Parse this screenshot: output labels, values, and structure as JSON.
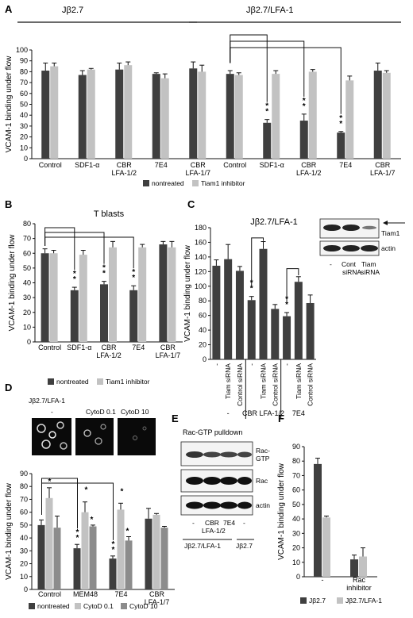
{
  "colors": {
    "dark": "#3f3f3f",
    "light": "#c2c2c2",
    "mid": "#8c8c8c",
    "frame": "#888888"
  },
  "chart_data": [
    {
      "panel": "A",
      "type": "bar",
      "ylabel": "VCAM-1 binding under flow",
      "ylim": [
        0,
        100
      ],
      "yticks": [
        0,
        10,
        20,
        30,
        40,
        50,
        60,
        70,
        80,
        90,
        100
      ],
      "groups": [
        "Jβ2.7",
        "Jβ2.7/LFA-1"
      ],
      "categories": [
        "Control",
        "SDF1-α",
        "CBR\nLFA-1/2",
        "7E4",
        "CBR\nLFA-1/7",
        "Control",
        "SDF1-α",
        "CBR\nLFA-1/2",
        "7E4",
        "CBR\nLFA-1/7"
      ],
      "series": [
        {
          "name": "nontreated",
          "values": [
            81,
            77,
            82,
            78,
            83,
            78,
            33,
            35,
            24,
            81
          ],
          "errors": [
            7,
            4,
            6,
            1,
            6,
            3,
            3,
            6,
            1,
            7
          ]
        },
        {
          "name": "Tiam1 inhibitor",
          "values": [
            85,
            82,
            86,
            74,
            80,
            77,
            78,
            80,
            72,
            79
          ],
          "errors": [
            3,
            1,
            3,
            4,
            6,
            2,
            3,
            2,
            4,
            2
          ]
        }
      ],
      "legend": [
        "nontreated",
        "Tiam1 inhibitor"
      ]
    },
    {
      "panel": "B",
      "type": "bar",
      "title": "T blasts",
      "ylabel": "VCAM-1 binding under flow",
      "ylim": [
        0,
        80
      ],
      "yticks": [
        0,
        10,
        20,
        30,
        40,
        50,
        60,
        70,
        80
      ],
      "categories": [
        "Control",
        "SDF1-α",
        "CBR\nLFA-1/2",
        "7E4",
        "CBR\nLFA-1/7"
      ],
      "series": [
        {
          "name": "nontreated",
          "values": [
            60,
            35,
            39,
            35,
            66
          ],
          "errors": [
            3,
            2,
            2,
            3,
            2
          ]
        },
        {
          "name": "Tiam1 inhibitor",
          "values": [
            60,
            59,
            64,
            64,
            64
          ],
          "errors": [
            2,
            3,
            4,
            2,
            4
          ]
        }
      ],
      "legend": [
        "nontreated",
        "Tiam1 inhibitor"
      ]
    },
    {
      "panel": "C",
      "type": "bar",
      "title": "Jβ2.7/LFA-1",
      "ylabel": "VCAM-1 binding under flow",
      "ylim": [
        0,
        180
      ],
      "yticks": [
        0,
        20,
        40,
        60,
        80,
        100,
        120,
        140,
        160,
        180
      ],
      "categories": [
        "-",
        "Tiam siRNA",
        "Control siRNA",
        "-",
        "Tiam siRNA",
        "Control siRNA",
        "-",
        "Tiam siRNA",
        "Control siRNA"
      ],
      "conditions": [
        "-",
        "CBR LFA-1/2",
        "7E4"
      ],
      "values": [
        128,
        137,
        121,
        81,
        151,
        69,
        59,
        106,
        77
      ],
      "errors": [
        8,
        20,
        6,
        5,
        10,
        6,
        5,
        7,
        11
      ],
      "blot": {
        "lanes": [
          "-",
          "Cont\nsiRNA",
          "Tiam\nsiRNA"
        ],
        "bands": [
          "Tiam1",
          "actin"
        ]
      }
    },
    {
      "panel": "D",
      "type": "bar",
      "title": "Jβ2.7/LFA-1",
      "image_labels": [
        "-",
        "CytoD 0.1",
        "CytoD 10"
      ],
      "ylabel": "VCAM-1 binding under flow",
      "ylim": [
        0,
        90
      ],
      "yticks": [
        0,
        10,
        20,
        30,
        40,
        50,
        60,
        70,
        80,
        90
      ],
      "categories": [
        "Control",
        "MEM48",
        "7E4",
        "CBR\nLFA-1/7"
      ],
      "series": [
        {
          "name": "nontreated",
          "values": [
            50,
            32,
            24,
            55
          ],
          "errors": [
            4,
            3,
            2,
            8
          ]
        },
        {
          "name": "CytoD 0.1",
          "values": [
            71,
            60,
            62,
            58
          ],
          "errors": [
            8,
            8,
            5,
            1
          ]
        },
        {
          "name": "CytoD 10",
          "values": [
            48,
            49,
            38,
            48
          ],
          "errors": [
            9,
            1,
            3,
            1
          ]
        }
      ],
      "legend": [
        "nontreated",
        "CytoD 0.1",
        "CytoD 10"
      ]
    },
    {
      "panel": "E",
      "type": "table",
      "title": "Rac-GTP pulldown",
      "bands": [
        "Rac-\nGTP",
        "Rac",
        "actin"
      ],
      "lanes": [
        "-",
        "CBR\nLFA-1/2",
        "7E4",
        "-"
      ],
      "groups": [
        "Jβ2.7/LFA-1",
        "Jβ2.7"
      ]
    },
    {
      "panel": "F",
      "type": "bar",
      "ylabel": "VCAM-1 binding under flow",
      "ylim": [
        0,
        90
      ],
      "yticks": [
        0,
        10,
        20,
        30,
        40,
        50,
        60,
        70,
        80,
        90
      ],
      "categories": [
        "-",
        "Rac\ninhibitor"
      ],
      "series": [
        {
          "name": "Jβ2.7",
          "values": [
            78,
            12
          ],
          "errors": [
            4,
            3
          ]
        },
        {
          "name": "Jβ2.7/LFA-1",
          "values": [
            41,
            14
          ],
          "errors": [
            1,
            6
          ]
        }
      ],
      "legend": [
        "Jβ2.7",
        "Jβ2.7/LFA-1"
      ]
    }
  ],
  "significance": "* *"
}
